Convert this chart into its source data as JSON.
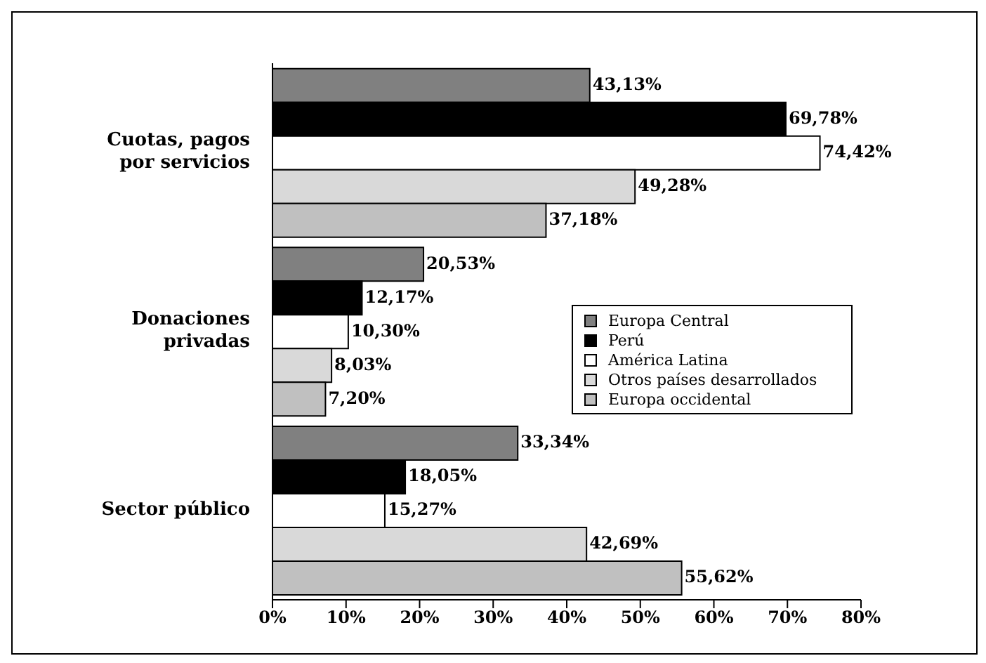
{
  "chart_data": {
    "type": "bar",
    "orientation": "horizontal",
    "categories": [
      "Cuotas, pagos por servicios",
      "Donaciones privadas",
      "Sector público"
    ],
    "series": [
      {
        "name": "Europa Central",
        "color": "#808080",
        "values": [
          43.13,
          20.53,
          33.34
        ],
        "value_labels": [
          "43,13%",
          "20,53%",
          "33,34%"
        ]
      },
      {
        "name": "Perú",
        "color": "#000000",
        "values": [
          69.78,
          12.17,
          18.05
        ],
        "value_labels": [
          "69,78%",
          "12,17%",
          "18,05%"
        ]
      },
      {
        "name": "América Latina",
        "color": "#ffffff",
        "values": [
          74.42,
          10.3,
          15.27
        ],
        "value_labels": [
          "74,42%",
          "10,30%",
          "15,27%"
        ]
      },
      {
        "name": "Otros países desarrollados",
        "color": "#d9d9d9",
        "values": [
          49.28,
          8.03,
          42.69
        ],
        "value_labels": [
          "49,28%",
          "8,03%",
          "42,69%"
        ]
      },
      {
        "name": "Europa occidental",
        "color": "#c0c0c0",
        "values": [
          37.18,
          7.2,
          55.62
        ],
        "value_labels": [
          "37,18%",
          "7,20%",
          "55,62%"
        ]
      }
    ],
    "xlim": [
      0,
      80
    ],
    "xticks": [
      {
        "value": 0,
        "label": "0%"
      },
      {
        "value": 10,
        "label": "10%"
      },
      {
        "value": 20,
        "label": "20%"
      },
      {
        "value": 30,
        "label": "30%"
      },
      {
        "value": 40,
        "label": "40%"
      },
      {
        "value": 50,
        "label": "50%"
      },
      {
        "value": 60,
        "label": "60%"
      },
      {
        "value": 70,
        "label": "70%"
      },
      {
        "value": 80,
        "label": "80%"
      }
    ],
    "legend": "right",
    "grid": false
  }
}
